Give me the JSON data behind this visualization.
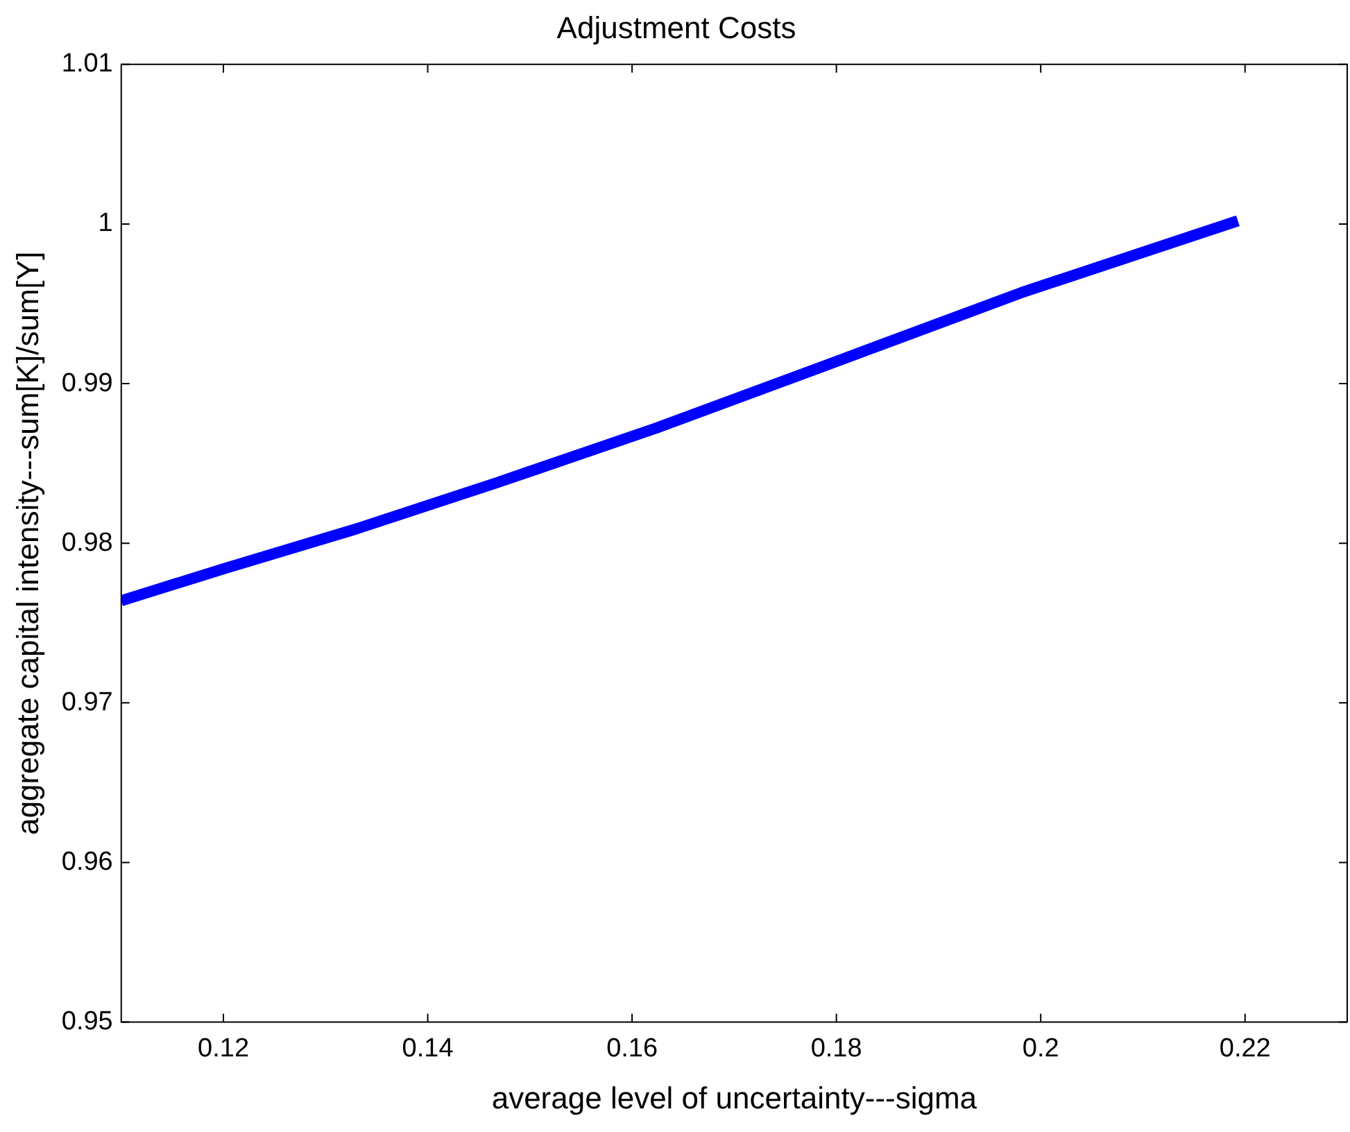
{
  "chart_data": {
    "type": "line",
    "title": "Adjustment Costs",
    "xlabel": "average level of uncertainty---sigma",
    "ylabel": "aggregate capital intensity---sum[K]/sum[Y]",
    "x": [
      0.11,
      0.12,
      0.133,
      0.1468,
      0.1623,
      0.1792,
      0.1981,
      0.2193
    ],
    "series": [
      {
        "color": "#0000ff",
        "values": [
          0.9764,
          0.9784,
          0.9809,
          0.9838,
          0.9872,
          0.9912,
          0.9957,
          1.0002
        ]
      }
    ],
    "xlim": [
      0.11,
      0.23
    ],
    "xticks": [
      0.12,
      0.14,
      0.16,
      0.18,
      0.2,
      0.22
    ],
    "ylim": [
      0.95,
      1.01
    ],
    "yticks": [
      0.95,
      0.96,
      0.97,
      0.98,
      0.99,
      1,
      1.01
    ],
    "grid": false,
    "legend": false,
    "marker": "none",
    "line_style": "solid"
  }
}
